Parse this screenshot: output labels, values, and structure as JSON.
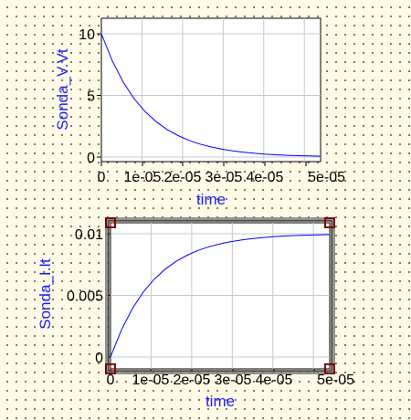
{
  "chart_data": [
    {
      "type": "line",
      "xlabel": "time",
      "ylabel": "Sonda_V.Vt",
      "xlim": [
        0,
        5e-05
      ],
      "ylim": [
        0,
        10
      ],
      "x_ticks": [
        "0",
        "1e-05",
        "2e-05",
        "3e-05",
        "4e-05",
        "5e-05"
      ],
      "y_ticks": [
        "0",
        "5",
        "10"
      ],
      "grid": true,
      "color": "#0000ff",
      "x": [
        0,
        2.5e-06,
        5e-06,
        7.5e-06,
        1e-05,
        1.25e-05,
        1.5e-05,
        1.75e-05,
        2e-05,
        2.25e-05,
        2.5e-05,
        2.75e-05,
        3e-05,
        3.25e-05,
        3.5e-05,
        3.75e-05,
        4e-05,
        4.25e-05,
        4.5e-05,
        4.75e-05,
        5e-05
      ],
      "y": [
        10,
        7.79,
        6.07,
        4.72,
        3.68,
        2.87,
        2.23,
        1.74,
        1.35,
        1.05,
        0.82,
        0.64,
        0.5,
        0.39,
        0.3,
        0.23,
        0.18,
        0.14,
        0.11,
        0.09,
        0.07
      ]
    },
    {
      "type": "line",
      "xlabel": "time",
      "ylabel": "Sonda_I.It",
      "xlim": [
        0,
        5e-05
      ],
      "ylim": [
        0,
        0.011
      ],
      "x_ticks": [
        "0",
        "1e-05",
        "2e-05",
        "3e-05",
        "4e-05",
        "5e-05"
      ],
      "y_ticks": [
        "0",
        "0.005",
        "0.01"
      ],
      "grid": true,
      "color": "#0000ff",
      "selected": true,
      "x": [
        0,
        2.5e-06,
        5e-06,
        7.5e-06,
        1e-05,
        1.25e-05,
        1.5e-05,
        1.75e-05,
        2e-05,
        2.25e-05,
        2.5e-05,
        2.75e-05,
        3e-05,
        3.25e-05,
        3.5e-05,
        3.75e-05,
        4e-05,
        4.25e-05,
        4.5e-05,
        4.75e-05,
        5e-05
      ],
      "y": [
        0,
        0.0022,
        0.00393,
        0.00528,
        0.00632,
        0.00713,
        0.00777,
        0.00826,
        0.00865,
        0.00895,
        0.00918,
        0.00936,
        0.0095,
        0.00961,
        0.0097,
        0.00977,
        0.00982,
        0.00986,
        0.00989,
        0.00991,
        0.00993
      ]
    }
  ]
}
